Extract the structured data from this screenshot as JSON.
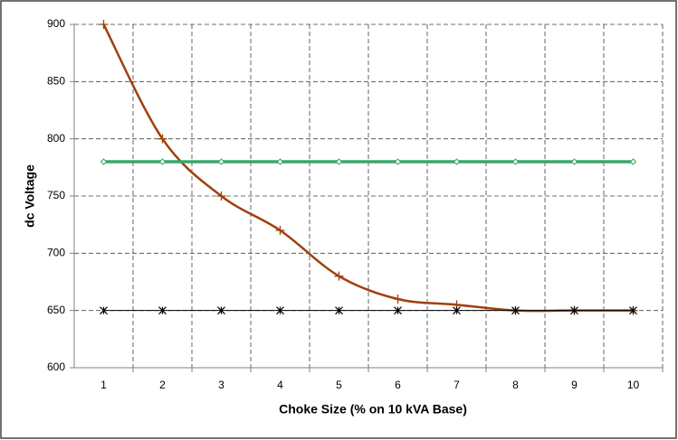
{
  "chart_data": {
    "type": "line",
    "x_label": "Choke Size (% on 10 kVA Base)",
    "y_label": "dc Voltage",
    "categories": [
      "1",
      "2",
      "3",
      "4",
      "5",
      "6",
      "7",
      "8",
      "9",
      "10"
    ],
    "series": [
      {
        "color": "#a0400c",
        "marker": "plus",
        "smooth": true,
        "values": [
          900,
          800,
          750,
          720,
          680,
          660,
          655,
          650,
          650,
          650
        ]
      },
      {
        "color": "#3aa66a",
        "marker": "diamond",
        "smooth": false,
        "values": [
          780,
          780,
          780,
          780,
          780,
          780,
          780,
          780,
          780,
          780
        ]
      },
      {
        "color": "#000000",
        "marker": "asterisk",
        "smooth": false,
        "values": [
          650,
          650,
          650,
          650,
          650,
          650,
          650,
          650,
          650,
          650
        ]
      }
    ],
    "ylim": [
      600,
      900
    ],
    "yticks": [
      600,
      650,
      700,
      750,
      800,
      850,
      900
    ],
    "grid": true
  }
}
